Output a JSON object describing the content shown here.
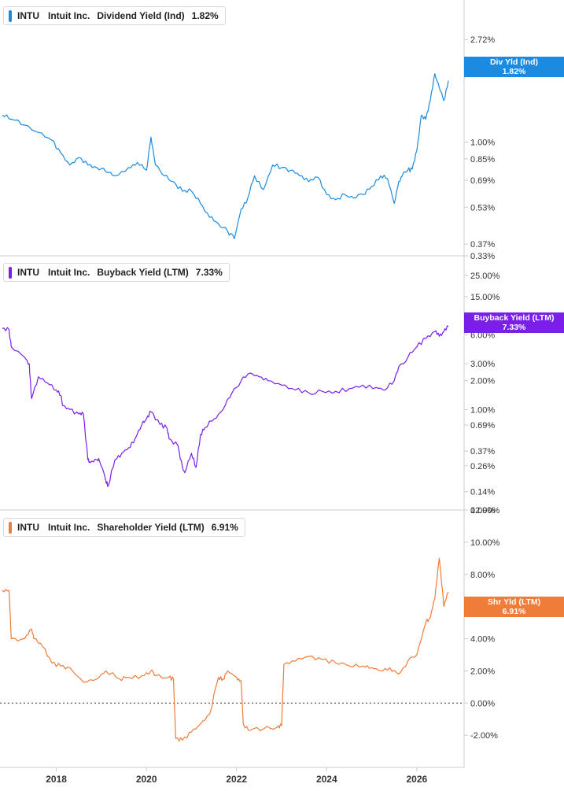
{
  "colors": {
    "dividend": "#1a8be0",
    "buyback": "#7b1fe8",
    "shareholder": "#f07c3a",
    "axis": "#cccccc",
    "tick_text": "#333333"
  },
  "legends": [
    {
      "symbol": "INTU",
      "name": "Intuit Inc.",
      "metric": "Dividend Yield (Ind)",
      "value": "1.82%"
    },
    {
      "symbol": "INTU",
      "name": "Intuit Inc.",
      "metric": "Buyback Yield (LTM)",
      "value": "7.33%"
    },
    {
      "symbol": "INTU",
      "name": "Intuit Inc.",
      "metric": "Shareholder Yield (LTM)",
      "value": "6.91%"
    }
  ],
  "tags": [
    {
      "line1": "Div Yld (Ind)",
      "line2": "1.82%"
    },
    {
      "line1": "Buyback Yield (LTM)",
      "line2": "7.33%"
    },
    {
      "line1": "Shr Yld (LTM)",
      "line2": "6.91%"
    }
  ],
  "chart_data": [
    {
      "type": "line",
      "title": "INTU Intuit Inc. Dividend Yield (Ind) 1.82%",
      "scale": "log",
      "series": [
        {
          "name": "Dividend Yield (Ind)",
          "unit": "%",
          "x": [
            2016.8,
            2017.0,
            2017.3,
            2017.6,
            2017.9,
            2018.1,
            2018.3,
            2018.5,
            2018.7,
            2018.9,
            2019.1,
            2019.3,
            2019.6,
            2019.8,
            2020.0,
            2020.1,
            2020.2,
            2020.4,
            2020.6,
            2020.8,
            2021.0,
            2021.2,
            2021.4,
            2021.6,
            2021.8,
            2021.95,
            2022.1,
            2022.25,
            2022.4,
            2022.6,
            2022.8,
            2023.0,
            2023.2,
            2023.4,
            2023.6,
            2023.8,
            2024.0,
            2024.2,
            2024.4,
            2024.6,
            2024.8,
            2025.0,
            2025.2,
            2025.35,
            2025.5,
            2025.6,
            2025.7,
            2025.8,
            2025.9,
            2026.0,
            2026.1,
            2026.2,
            2026.3,
            2026.4,
            2026.5,
            2026.6,
            2026.7
          ],
          "y": [
            1.3,
            1.25,
            1.18,
            1.1,
            1.02,
            0.9,
            0.8,
            0.86,
            0.8,
            0.78,
            0.75,
            0.72,
            0.78,
            0.82,
            0.76,
            1.05,
            0.8,
            0.72,
            0.68,
            0.62,
            0.62,
            0.55,
            0.48,
            0.45,
            0.42,
            0.39,
            0.52,
            0.58,
            0.72,
            0.63,
            0.8,
            0.78,
            0.76,
            0.72,
            0.68,
            0.71,
            0.6,
            0.57,
            0.6,
            0.58,
            0.6,
            0.65,
            0.72,
            0.7,
            0.55,
            0.68,
            0.74,
            0.76,
            0.77,
            0.92,
            1.3,
            1.25,
            1.5,
            1.95,
            1.7,
            1.5,
            1.82
          ]
        }
      ],
      "y_ticks": [
        "2.72%",
        "2.00%",
        "1.00%",
        "0.85%",
        "0.69%",
        "0.53%",
        "0.37%",
        "0.33%"
      ],
      "y_tick_values": [
        2.72,
        2.0,
        1.0,
        0.85,
        0.69,
        0.53,
        0.37,
        0.33
      ],
      "ylim": [
        0.33,
        4.0
      ]
    },
    {
      "type": "line",
      "title": "INTU Intuit Inc. Buyback Yield (LTM) 7.33%",
      "scale": "log",
      "series": [
        {
          "name": "Buyback Yield (LTM)",
          "unit": "%",
          "x": [
            2016.8,
            2016.95,
            2017.0,
            2017.3,
            2017.4,
            2017.45,
            2017.6,
            2017.8,
            2018.0,
            2018.1,
            2018.15,
            2018.3,
            2018.5,
            2018.6,
            2018.7,
            2018.75,
            2018.9,
            2018.95,
            2019.1,
            2019.15,
            2019.3,
            2019.45,
            2019.6,
            2019.75,
            2019.9,
            2020.0,
            2020.1,
            2020.3,
            2020.45,
            2020.5,
            2020.7,
            2020.8,
            2020.85,
            2021.0,
            2021.1,
            2021.2,
            2021.3,
            2021.5,
            2021.7,
            2021.9,
            2022.1,
            2022.3,
            2022.5,
            2022.7,
            2023.0,
            2023.3,
            2023.6,
            2023.9,
            2024.2,
            2024.5,
            2024.8,
            2025.1,
            2025.3,
            2025.5,
            2025.6,
            2025.8,
            2026.0,
            2026.2,
            2026.4,
            2026.5,
            2026.6,
            2026.7
          ],
          "y": [
            7.0,
            6.8,
            4.5,
            3.5,
            3.0,
            1.3,
            2.2,
            1.9,
            1.6,
            1.4,
            1.1,
            1.0,
            0.9,
            0.9,
            0.3,
            0.28,
            0.3,
            0.3,
            0.18,
            0.16,
            0.3,
            0.35,
            0.4,
            0.5,
            0.7,
            0.8,
            0.95,
            0.7,
            0.65,
            0.5,
            0.42,
            0.25,
            0.22,
            0.35,
            0.25,
            0.55,
            0.65,
            0.8,
            1.0,
            1.5,
            2.0,
            2.4,
            2.2,
            2.0,
            1.8,
            1.6,
            1.5,
            1.55,
            1.55,
            1.65,
            1.8,
            1.7,
            1.6,
            2.0,
            2.8,
            3.5,
            4.5,
            5.5,
            6.5,
            5.8,
            6.5,
            7.33
          ]
        }
      ],
      "y_ticks": [
        "25.00%",
        "15.00%",
        "6.00%",
        "3.00%",
        "2.00%",
        "1.00%",
        "0.69%",
        "0.37%",
        "0.26%",
        "0.14%",
        "0.09%"
      ],
      "y_tick_values": [
        25,
        15,
        6,
        3,
        2,
        1,
        0.69,
        0.37,
        0.26,
        0.14,
        0.09
      ],
      "ylim": [
        0.09,
        40
      ]
    },
    {
      "type": "line",
      "title": "INTU Intuit Inc. Shareholder Yield (LTM) 6.91%",
      "scale": "linear",
      "series": [
        {
          "name": "Shareholder Yield (LTM)",
          "unit": "%",
          "x": [
            2016.8,
            2016.95,
            2017.0,
            2017.3,
            2017.45,
            2017.5,
            2017.7,
            2017.9,
            2018.1,
            2018.3,
            2018.6,
            2018.9,
            2019.1,
            2019.4,
            2019.6,
            2019.9,
            2020.1,
            2020.2,
            2020.5,
            2020.6,
            2020.65,
            2020.8,
            2021.0,
            2021.2,
            2021.4,
            2021.6,
            2021.7,
            2021.8,
            2022.0,
            2022.1,
            2022.15,
            2022.3,
            2022.6,
            2022.9,
            2023.0,
            2023.05,
            2023.3,
            2023.6,
            2023.9,
            2024.2,
            2024.5,
            2024.8,
            2025.0,
            2025.2,
            2025.4,
            2025.6,
            2025.8,
            2026.0,
            2026.2,
            2026.3,
            2026.4,
            2026.5,
            2026.6,
            2026.7
          ],
          "y": [
            7.0,
            7.0,
            4.0,
            4.0,
            4.6,
            4.0,
            3.5,
            2.5,
            2.3,
            2.2,
            1.3,
            1.5,
            2.0,
            1.5,
            1.6,
            1.7,
            2.0,
            1.7,
            1.6,
            1.5,
            -2.2,
            -2.3,
            -1.8,
            -1.3,
            -0.7,
            1.6,
            1.5,
            2.0,
            1.6,
            1.4,
            -1.3,
            -1.7,
            -1.6,
            -1.5,
            -1.4,
            2.4,
            2.6,
            2.9,
            2.7,
            2.5,
            2.3,
            2.3,
            2.2,
            2.0,
            2.2,
            1.8,
            2.6,
            3.0,
            5.0,
            5.3,
            6.5,
            9.0,
            6.0,
            6.91
          ]
        }
      ],
      "y_ticks": [
        "12.00%",
        "10.00%",
        "8.00%",
        "6.00%",
        "4.00%",
        "2.00%",
        "0.00%",
        "-2.00%"
      ],
      "y_tick_values": [
        12,
        10,
        8,
        6,
        4,
        2,
        0,
        -2
      ],
      "ylim": [
        -4.0,
        12.0
      ]
    }
  ],
  "x_axis": {
    "ticks": [
      "2018",
      "2020",
      "2022",
      "2024",
      "2026"
    ],
    "tick_values": [
      2018,
      2020,
      2022,
      2024,
      2026
    ],
    "xlim": [
      2016.75,
      2027.05
    ]
  }
}
